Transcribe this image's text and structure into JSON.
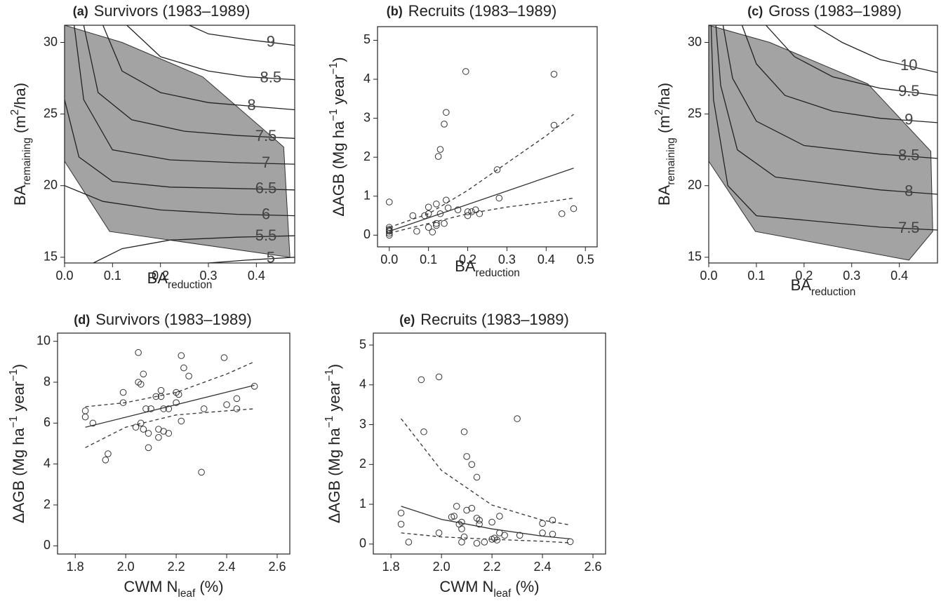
{
  "chart_data": [
    {
      "type": "contour",
      "panel_label": "(a)",
      "title": "Survivors (1983–1989)",
      "xlabel": [
        "BA",
        {
          "sub": "reduction"
        }
      ],
      "ylabel": [
        "BA",
        {
          "sub": "remaining"
        },
        " (m",
        {
          "sup": "2"
        },
        "/ha)"
      ],
      "xlim": [
        0,
        0.48
      ],
      "ylim": [
        14.6,
        31.2
      ],
      "xticks": [
        {
          "value": 0,
          "label": "0.0"
        },
        0.1,
        0.2,
        0.3,
        0.4
      ],
      "yticks": [
        15,
        20,
        25,
        30
      ],
      "hull_color": "#a3a3a3",
      "hull": {
        "x": [
          0,
          0.12,
          0.288,
          0.457,
          0.47,
          0.094,
          0
        ],
        "y": [
          31.2,
          30,
          27.6,
          22.7,
          15.0,
          16.8,
          21.7
        ]
      },
      "contours": [
        {
          "level": 9,
          "x": [
            0.26,
            0.3,
            0.38,
            0.48
          ],
          "y": [
            31.2,
            30.6,
            30.2,
            29.8
          ]
        },
        {
          "level": 8.5,
          "x": [
            0.13,
            0.2,
            0.3,
            0.38,
            0.48
          ],
          "y": [
            31.2,
            29,
            28,
            27.6,
            27.4
          ]
        },
        {
          "level": 8,
          "x": [
            0.08,
            0.12,
            0.2,
            0.3,
            0.48
          ],
          "y": [
            31.2,
            28,
            26.5,
            25.8,
            25.3
          ]
        },
        {
          "level": 7.5,
          "x": [
            0.04,
            0.07,
            0.14,
            0.25,
            0.36,
            0.48
          ],
          "y": [
            31.2,
            26.5,
            24.6,
            23.8,
            23.5,
            23.3
          ]
        },
        {
          "level": 7,
          "x": [
            0.02,
            0.04,
            0.1,
            0.22,
            0.36,
            0.48
          ],
          "y": [
            31.2,
            26,
            22.5,
            21.8,
            21.6,
            21.5
          ]
        },
        {
          "level": 6.5,
          "x": [
            0,
            0.03,
            0.1,
            0.22,
            0.36,
            0.48
          ],
          "y": [
            26,
            22,
            20.3,
            19.9,
            19.8,
            19.7
          ]
        },
        {
          "level": 6,
          "x": [
            0,
            0.08,
            0.2,
            0.36,
            0.48
          ],
          "y": [
            20,
            18.9,
            18.3,
            18.0,
            17.9
          ]
        },
        {
          "level": 5.5,
          "x": [
            0.06,
            0.12,
            0.22,
            0.36,
            0.48
          ],
          "y": [
            14.6,
            15.6,
            16.2,
            16.4,
            16.5
          ]
        },
        {
          "level": 5,
          "x": [
            0.3,
            0.38,
            0.48
          ],
          "y": [
            14.6,
            14.8,
            15.0
          ]
        }
      ]
    },
    {
      "type": "scatter",
      "panel_label": "(b)",
      "title": "Recruits (1983–1989)",
      "xlabel": [
        "BA",
        {
          "sub": "reduction"
        }
      ],
      "ylabel": [
        "ΔAGB (Mg ha",
        {
          "sup": "−1"
        },
        " year",
        {
          "sup": "−1"
        },
        ")"
      ],
      "xlim": [
        -0.03,
        0.53
      ],
      "ylim": [
        -0.3,
        5.35
      ],
      "xticks": [
        {
          "value": 0,
          "label": "0.0"
        },
        0.1,
        0.2,
        0.3,
        0.4,
        0.5
      ],
      "yticks": [
        0,
        1,
        2,
        3,
        4,
        5
      ],
      "point_color": "#333333",
      "line_color": "#333333",
      "points": {
        "x": [
          0,
          0,
          0,
          0,
          0,
          0,
          0,
          0.06,
          0.07,
          0.09,
          0.1,
          0.1,
          0.1,
          0.11,
          0.12,
          0.12,
          0.12,
          0.13,
          0.125,
          0.13,
          0.14,
          0.145,
          0.14,
          0.145,
          0.15,
          0.175,
          0.195,
          0.2,
          0.2,
          0.21,
          0.22,
          0.23,
          0.275,
          0.28,
          0.42,
          0.42,
          0.44,
          0.47
        ],
        "y": [
          0.85,
          0.2,
          0.15,
          0.1,
          0.05,
          0.0,
          0.12,
          0.5,
          0.1,
          0.5,
          0.72,
          0.55,
          0.2,
          0.08,
          0.8,
          0.3,
          0.25,
          0.55,
          2.02,
          2.2,
          2.85,
          3.15,
          0.3,
          0.9,
          0.7,
          0.65,
          4.2,
          0.5,
          0.6,
          0.6,
          0.65,
          0.55,
          1.68,
          0.95,
          4.13,
          2.82,
          0.55,
          0.68
        ]
      },
      "fit": {
        "x": [
          0,
          0.47
        ],
        "y": [
          0.1,
          1.72
        ]
      },
      "ci_upper": {
        "x": [
          0,
          0.1,
          0.2,
          0.3,
          0.4,
          0.47
        ],
        "y": [
          0.2,
          0.55,
          1.15,
          1.85,
          2.55,
          3.1
        ]
      },
      "ci_lower": {
        "x": [
          0,
          0.1,
          0.2,
          0.3,
          0.4,
          0.47
        ],
        "y": [
          0.05,
          0.3,
          0.55,
          0.72,
          0.85,
          0.95
        ]
      }
    },
    {
      "type": "contour",
      "panel_label": "(c)",
      "title": "Gross (1983–1989)",
      "xlabel": [
        "BA",
        {
          "sub": "reduction"
        }
      ],
      "ylabel": [
        "BA",
        {
          "sub": "remaining"
        },
        " (m",
        {
          "sup": "2"
        },
        "/ha)"
      ],
      "xlim": [
        0,
        0.48
      ],
      "ylim": [
        14.6,
        31.2
      ],
      "xticks": [
        {
          "value": 0,
          "label": "0.0"
        },
        0.1,
        0.2,
        0.3,
        0.4
      ],
      "yticks": [
        15,
        20,
        25,
        30
      ],
      "hull_color": "#a3a3a3",
      "hull": {
        "x": [
          0,
          0.128,
          0.334,
          0.466,
          0.47,
          0.42,
          0.098,
          0
        ],
        "y": [
          31.2,
          30,
          27.1,
          22.4,
          16.8,
          14.8,
          16.8,
          21.7
        ]
      },
      "contours": [
        {
          "level": 10,
          "x": [
            0.22,
            0.28,
            0.36,
            0.48
          ],
          "y": [
            31.2,
            30,
            28.8,
            27.9
          ]
        },
        {
          "level": 9.5,
          "x": [
            0.12,
            0.18,
            0.26,
            0.36,
            0.48
          ],
          "y": [
            31.2,
            29,
            27.6,
            26.8,
            26.3
          ]
        },
        {
          "level": 9,
          "x": [
            0.07,
            0.1,
            0.16,
            0.26,
            0.36,
            0.48
          ],
          "y": [
            31.2,
            28.5,
            26.3,
            25.2,
            24.7,
            24.4
          ]
        },
        {
          "level": 8.5,
          "x": [
            0.03,
            0.05,
            0.1,
            0.2,
            0.36,
            0.48
          ],
          "y": [
            31.2,
            27.5,
            24.5,
            22.8,
            22.2,
            21.9
          ]
        },
        {
          "level": 8,
          "x": [
            0.015,
            0.025,
            0.06,
            0.14,
            0.36,
            0.48
          ],
          "y": [
            31.2,
            27,
            22.5,
            20.6,
            19.7,
            19.4
          ]
        },
        {
          "level": 7.5,
          "x": [
            0.005,
            0.01,
            0.04,
            0.1,
            0.36,
            0.48
          ],
          "y": [
            31.2,
            26,
            20,
            17.9,
            17.1,
            16.9
          ]
        }
      ]
    },
    {
      "type": "scatter",
      "panel_label": "(d)",
      "title": "Survivors (1983–1989)",
      "xlabel": [
        "CWM N",
        {
          "sub": "leaf"
        },
        " (%)"
      ],
      "ylabel": [
        "ΔAGB (Mg ha",
        {
          "sup": "−1"
        },
        " year",
        {
          "sup": "−1"
        },
        ")"
      ],
      "xlim": [
        1.73,
        2.65
      ],
      "ylim": [
        -0.4,
        10.4
      ],
      "xticks": [
        1.8,
        {
          "value": 2,
          "label": "2.0"
        },
        2.2,
        2.4,
        2.6
      ],
      "yticks": [
        0,
        2,
        4,
        6,
        8,
        10
      ],
      "point_color": "#333333",
      "line_color": "#333333",
      "points": {
        "x": [
          1.84,
          1.84,
          1.87,
          1.92,
          1.93,
          1.99,
          1.99,
          2.04,
          2.05,
          2.05,
          2.06,
          2.06,
          2.07,
          2.07,
          2.08,
          2.09,
          2.09,
          2.1,
          2.12,
          2.13,
          2.13,
          2.14,
          2.14,
          2.15,
          2.15,
          2.17,
          2.17,
          2.2,
          2.2,
          2.21,
          2.22,
          2.22,
          2.23,
          2.25,
          2.3,
          2.31,
          2.39,
          2.4,
          2.44,
          2.44,
          2.51
        ],
        "y": [
          6.6,
          6.3,
          6.0,
          4.2,
          4.5,
          7.0,
          7.5,
          5.8,
          9.45,
          8.0,
          6.0,
          7.9,
          8.4,
          5.7,
          6.7,
          5.5,
          4.8,
          6.7,
          7.3,
          5.3,
          5.7,
          7.6,
          7.3,
          6.7,
          5.6,
          5.5,
          6.7,
          7.5,
          7.0,
          7.4,
          6.1,
          9.3,
          8.7,
          8.3,
          3.6,
          6.7,
          9.2,
          6.9,
          7.2,
          6.7,
          7.8
        ]
      },
      "fit": {
        "x": [
          1.84,
          2.51
        ],
        "y": [
          5.8,
          7.85
        ]
      },
      "ci_upper": {
        "x": [
          1.84,
          2.0,
          2.2,
          2.4,
          2.51
        ],
        "y": [
          6.8,
          7.0,
          7.5,
          8.4,
          9.0
        ]
      },
      "ci_lower": {
        "x": [
          1.84,
          2.0,
          2.2,
          2.4,
          2.51
        ],
        "y": [
          4.8,
          5.8,
          6.4,
          6.6,
          6.7
        ]
      }
    },
    {
      "type": "scatter",
      "panel_label": "(e)",
      "title": "Recruits (1983–1989)",
      "xlabel": [
        "CWM N",
        {
          "sub": "leaf"
        },
        " (%)"
      ],
      "ylabel": [
        "ΔAGB (Mg ha",
        {
          "sup": "−1"
        },
        " year",
        {
          "sup": "−1"
        },
        ")"
      ],
      "xlim": [
        1.73,
        2.65
      ],
      "ylim": [
        -0.25,
        5.3
      ],
      "xticks": [
        1.8,
        {
          "value": 2,
          "label": "2.0"
        },
        2.2,
        2.4,
        2.6
      ],
      "yticks": [
        0,
        1,
        2,
        3,
        4,
        5
      ],
      "point_color": "#333333",
      "line_color": "#333333",
      "points": {
        "x": [
          1.84,
          1.84,
          1.87,
          1.92,
          1.93,
          1.99,
          1.99,
          2.04,
          2.05,
          2.06,
          2.07,
          2.08,
          2.08,
          2.08,
          2.09,
          2.1,
          2.1,
          2.09,
          2.12,
          2.12,
          2.14,
          2.14,
          2.14,
          2.15,
          2.15,
          2.17,
          2.2,
          2.2,
          2.21,
          2.22,
          2.23,
          2.23,
          2.25,
          2.3,
          2.31,
          2.4,
          2.4,
          2.44,
          2.44,
          2.51
        ],
        "y": [
          0.78,
          0.5,
          0.05,
          4.13,
          2.82,
          4.2,
          0.28,
          0.68,
          0.7,
          0.95,
          0.5,
          0.05,
          0.38,
          0.55,
          2.82,
          2.2,
          0.85,
          0.18,
          2.0,
          0.9,
          1.68,
          0.65,
          0.02,
          0.5,
          0.6,
          0.05,
          0.55,
          0.12,
          0.15,
          0.1,
          0.28,
          0.7,
          0.22,
          3.15,
          0.22,
          0.52,
          0.28,
          0.6,
          0.25,
          0.06
        ]
      },
      "fit": {
        "x": [
          1.84,
          2.0,
          2.2,
          2.4,
          2.51
        ],
        "y": [
          0.95,
          0.62,
          0.38,
          0.2,
          0.13
        ]
      },
      "ci_upper": {
        "x": [
          1.84,
          2.0,
          2.2,
          2.4,
          2.51
        ],
        "y": [
          3.15,
          1.85,
          0.98,
          0.6,
          0.48
        ]
      },
      "ci_lower": {
        "x": [
          1.84,
          2.0,
          2.2,
          2.4,
          2.51
        ],
        "y": [
          0.28,
          0.18,
          0.12,
          0.07,
          0.03
        ]
      }
    }
  ]
}
